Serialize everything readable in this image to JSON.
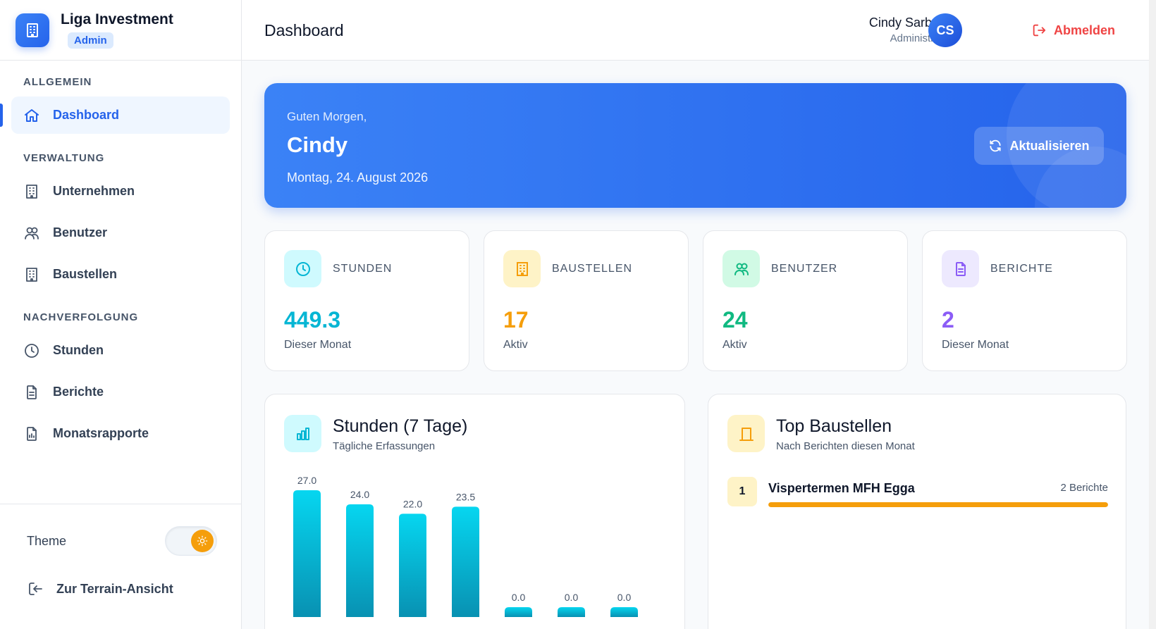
{
  "brand": {
    "name": "Liga Investment",
    "badge": "Admin"
  },
  "sidebar": {
    "sections": [
      {
        "heading": "ALLGEMEIN",
        "items": [
          {
            "label": "Dashboard",
            "icon": "home-icon",
            "active": true
          }
        ]
      },
      {
        "heading": "VERWALTUNG",
        "items": [
          {
            "label": "Unternehmen",
            "icon": "building-icon"
          },
          {
            "label": "Benutzer",
            "icon": "users-icon"
          },
          {
            "label": "Baustellen",
            "icon": "building-icon"
          }
        ]
      },
      {
        "heading": "NACHVERFOLGUNG",
        "items": [
          {
            "label": "Stunden",
            "icon": "clock-icon"
          },
          {
            "label": "Berichte",
            "icon": "document-icon"
          },
          {
            "label": "Monatsrapporte",
            "icon": "report-icon"
          }
        ]
      }
    ],
    "theme_label": "Theme",
    "terrain_link": "Zur Terrain-Ansicht"
  },
  "header": {
    "title": "Dashboard",
    "user_name": "Cindy Sarbach",
    "user_role": "Administrator",
    "avatar_initials": "CS",
    "logout_label": "Abmelden"
  },
  "hero": {
    "greeting": "Guten Morgen,",
    "name": "Cindy",
    "date": "Montag, 24. August 2026",
    "refresh_label": "Aktualisieren"
  },
  "stats": [
    {
      "label": "STUNDEN",
      "value": "449.3",
      "sub": "Dieser Monat",
      "color": "#06b6d4",
      "bg": "#cffafe",
      "icon": "clock-icon"
    },
    {
      "label": "BAUSTELLEN",
      "value": "17",
      "sub": "Aktiv",
      "color": "#f59e0b",
      "bg": "#fef3c7",
      "icon": "building-icon"
    },
    {
      "label": "BENUTZER",
      "value": "24",
      "sub": "Aktiv",
      "color": "#10b981",
      "bg": "#d1fae5",
      "icon": "users-icon"
    },
    {
      "label": "BERICHTE",
      "value": "2",
      "sub": "Dieser Monat",
      "color": "#8b5cf6",
      "bg": "#ede9fe",
      "icon": "document-icon"
    }
  ],
  "hours_panel": {
    "title": "Stunden (7 Tage)",
    "subtitle": "Tägliche Erfassungen"
  },
  "top_sites_panel": {
    "title": "Top Baustellen",
    "subtitle": "Nach Berichten diesen Monat",
    "items": [
      {
        "rank": "1",
        "name": "Vispertermen MFH Egga",
        "count": "2 Berichte",
        "fraction": 1.0
      }
    ]
  },
  "chart_data": {
    "type": "bar",
    "title": "Stunden (7 Tage)",
    "values": [
      27.0,
      24.0,
      22.0,
      23.5,
      0.0,
      0.0,
      0.0
    ],
    "labels": [
      "27.0",
      "24.0",
      "22.0",
      "23.5",
      "0.0",
      "0.0",
      "0.0"
    ],
    "color": "#06b6d4"
  }
}
